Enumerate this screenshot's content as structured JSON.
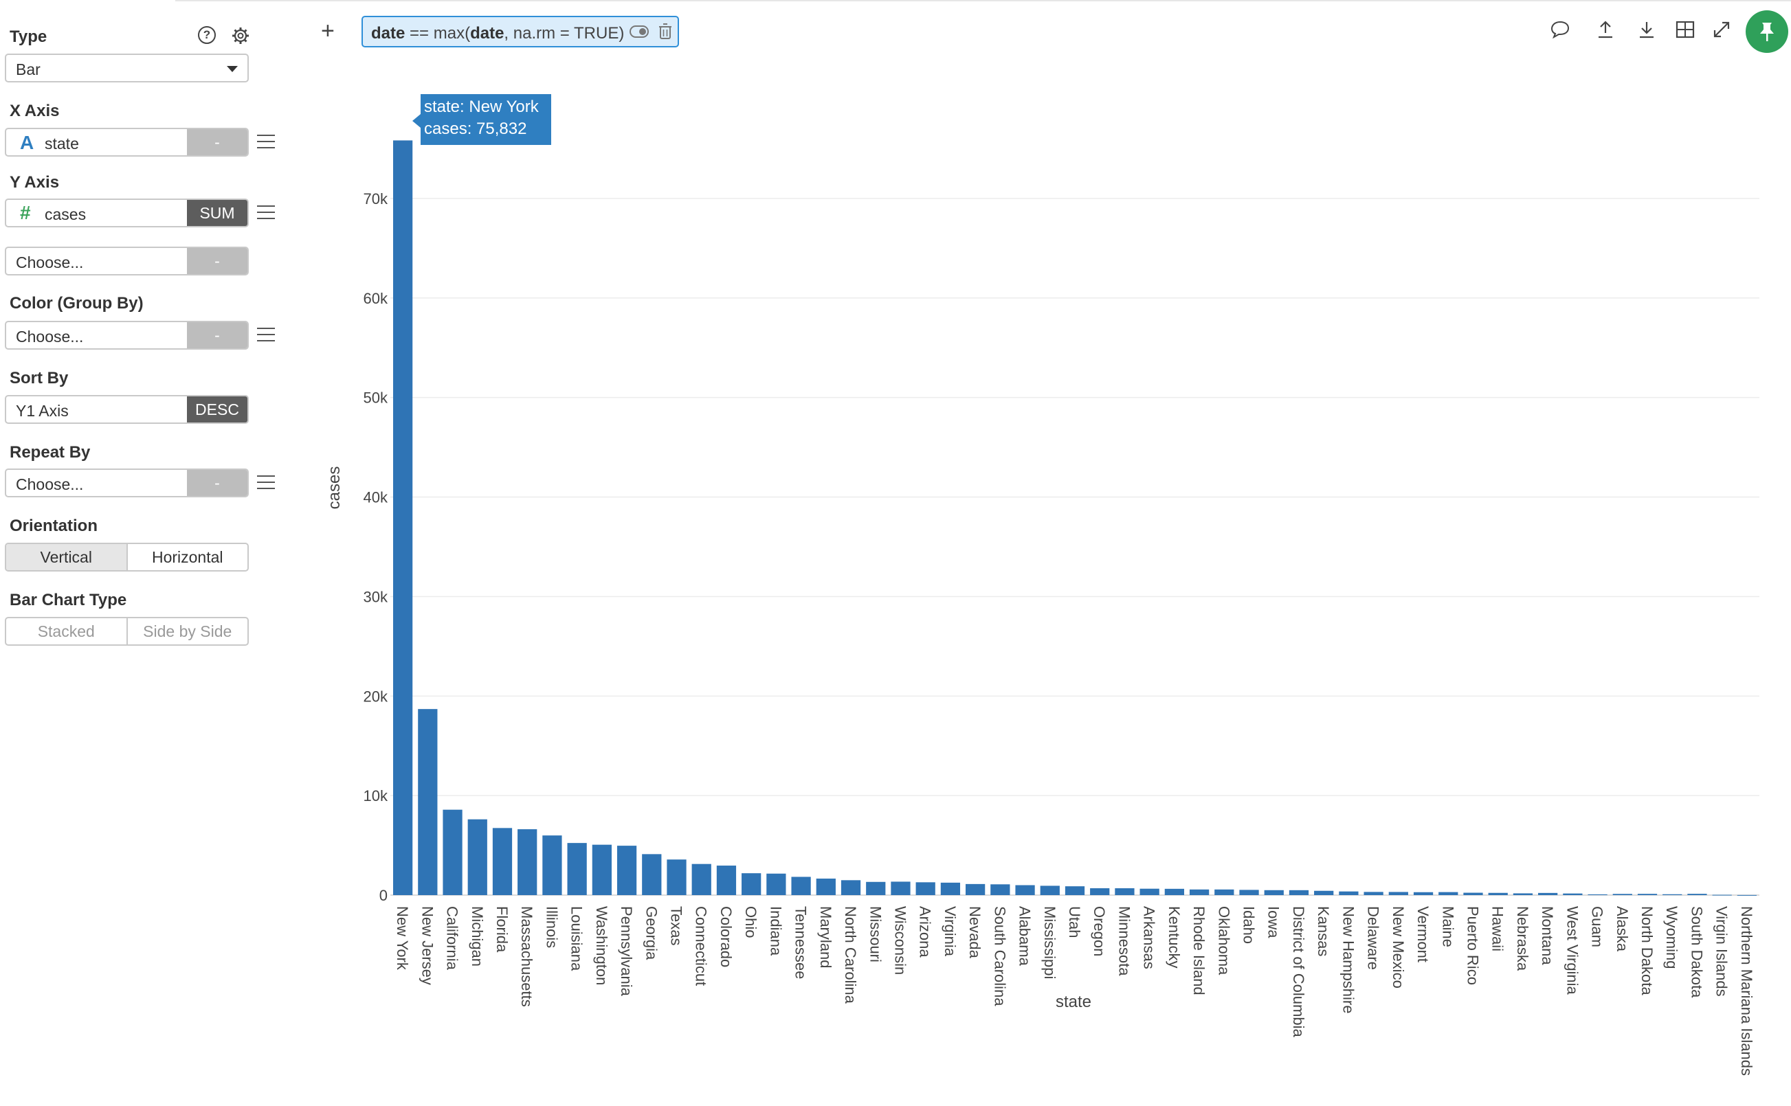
{
  "sidebar": {
    "type_label": "Type",
    "type_value": "Bar",
    "help_icon": "question-circle-icon",
    "settings_icon": "gear-icon",
    "x_axis": {
      "label": "X Axis",
      "type_icon": "A",
      "value": "state",
      "agg": "-"
    },
    "y_axis": {
      "label": "Y Axis",
      "type_icon": "#",
      "value": "cases",
      "agg": "SUM"
    },
    "y2": {
      "placeholder": "Choose...",
      "agg": "-"
    },
    "color": {
      "label": "Color (Group By)",
      "placeholder": "Choose...",
      "agg": "-"
    },
    "sort": {
      "label": "Sort By",
      "value": "Y1 Axis",
      "order": "DESC"
    },
    "repeat": {
      "label": "Repeat By",
      "placeholder": "Choose...",
      "agg": "-"
    },
    "orientation": {
      "label": "Orientation",
      "options": [
        "Vertical",
        "Horizontal"
      ],
      "selected": "Vertical"
    },
    "bar_type": {
      "label": "Bar Chart Type",
      "options": [
        "Stacked",
        "Side by Side"
      ]
    }
  },
  "toolbar": {
    "add_icon": "plus-icon",
    "filter": {
      "col": "date",
      "op": " == max(",
      "arg": "date",
      "rest": ", na.rm = TRUE)"
    },
    "icons": [
      "comment-icon",
      "upload-icon",
      "download-icon",
      "table-icon",
      "expand-icon",
      "pin-icon"
    ]
  },
  "tooltip": {
    "line1": "state: New York",
    "line2": "cases: 75,832"
  },
  "colors": {
    "bar": "#2f74b5",
    "accent": "#2f8fd8",
    "pin": "#2fa05a"
  },
  "chart_data": {
    "type": "bar",
    "xlabel": "state",
    "ylabel": "cases",
    "ylim": [
      0,
      78000
    ],
    "yticks": [
      0,
      10000,
      20000,
      30000,
      40000,
      50000,
      60000,
      70000
    ],
    "ytick_labels": [
      "0",
      "10k",
      "20k",
      "30k",
      "40k",
      "50k",
      "60k",
      "70k"
    ],
    "grid": true,
    "categories": [
      "New York",
      "New Jersey",
      "California",
      "Michigan",
      "Florida",
      "Massachusetts",
      "Illinois",
      "Louisiana",
      "Washington",
      "Pennsylvania",
      "Georgia",
      "Texas",
      "Connecticut",
      "Colorado",
      "Ohio",
      "Indiana",
      "Tennessee",
      "Maryland",
      "North Carolina",
      "Missouri",
      "Wisconsin",
      "Arizona",
      "Virginia",
      "Nevada",
      "South Carolina",
      "Alabama",
      "Mississippi",
      "Utah",
      "Oregon",
      "Minnesota",
      "Arkansas",
      "Kentucky",
      "Rhode Island",
      "Oklahoma",
      "Idaho",
      "Iowa",
      "District of Columbia",
      "Kansas",
      "New Hampshire",
      "Delaware",
      "New Mexico",
      "Vermont",
      "Maine",
      "Puerto Rico",
      "Hawaii",
      "Nebraska",
      "Montana",
      "West Virginia",
      "Guam",
      "Alaska",
      "North Dakota",
      "Wyoming",
      "South Dakota",
      "Virgin Islands",
      "Northern Mariana Islands"
    ],
    "values": [
      75832,
      18696,
      8582,
      7615,
      6741,
      6620,
      5994,
      5237,
      5063,
      4963,
      4117,
      3577,
      3128,
      2966,
      2199,
      2159,
      1834,
      1660,
      1498,
      1327,
      1351,
      1289,
      1250,
      1113,
      1083,
      999,
      937,
      887,
      690,
      689,
      643,
      632,
      566,
      565,
      525,
      497,
      495,
      431,
      367,
      319,
      315,
      293,
      303,
      239,
      224,
      177,
      217,
      162,
      74,
      119,
      126,
      86,
      129,
      30,
      8
    ]
  }
}
